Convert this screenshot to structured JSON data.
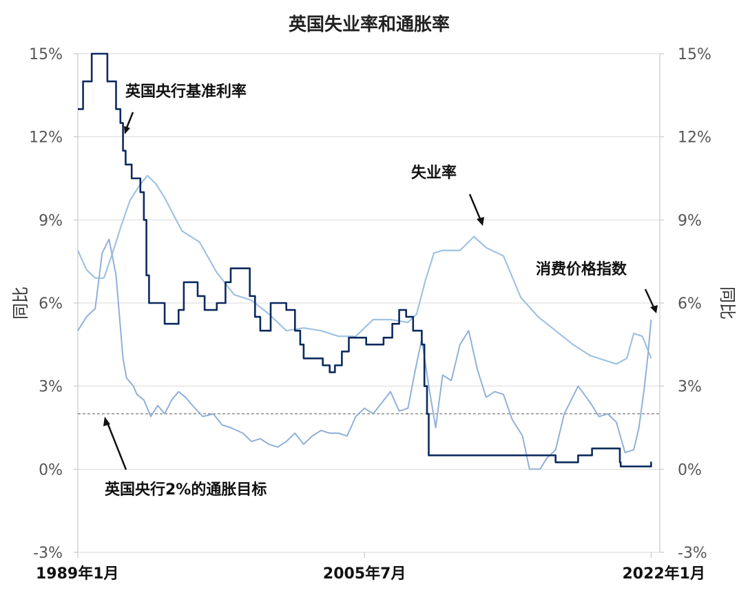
{
  "chart_data": {
    "type": "line",
    "title": "英国失业率和通胀率",
    "ylabel_left": "同比",
    "ylabel_right": "同比",
    "ylim": [
      -3,
      15
    ],
    "yticks": [
      "-3%",
      "0%",
      "3%",
      "6%",
      "9%",
      "12%",
      "15%"
    ],
    "ytick_values": [
      -3,
      0,
      3,
      6,
      9,
      12,
      15
    ],
    "xlim": [
      1989.0,
      2022.5
    ],
    "xtick_labels": [
      "1989年1月",
      "2005年7月",
      "2022年1月"
    ],
    "xtick_values": [
      1989.0,
      2005.5,
      2022.0
    ],
    "grid": true,
    "target_line": {
      "value": 2.0,
      "label": "英国央行2%的通胀目标",
      "color": "#555555"
    },
    "series": [
      {
        "name": "英国央行基准利率",
        "color": "#0b2a5e",
        "step": true,
        "x": [
          1989.0,
          1989.3,
          1989.8,
          1990.7,
          1991.2,
          1991.45,
          1991.6,
          1991.75,
          1992.1,
          1992.6,
          1992.8,
          1992.95,
          1993.1,
          1994.0,
          1994.8,
          1995.1,
          1995.9,
          1996.3,
          1997.0,
          1997.5,
          1997.8,
          1998.9,
          1999.2,
          1999.5,
          2000.1,
          2001.0,
          2001.5,
          2001.8,
          2002.0,
          2003.1,
          2003.5,
          2003.8,
          2004.2,
          2004.6,
          2005.1,
          2005.6,
          2006.6,
          2007.1,
          2007.5,
          2007.9,
          2008.3,
          2008.8,
          2008.95,
          2009.1,
          2009.2,
          2016.5,
          2017.8,
          2018.6,
          2020.2,
          2020.25,
          2021.9,
          2022.0
        ],
        "y": [
          13,
          14,
          15,
          14,
          13,
          12.5,
          11.5,
          11,
          10.5,
          10,
          9,
          7,
          6,
          5.25,
          5.75,
          6.75,
          6.25,
          5.75,
          6,
          6.75,
          7.25,
          6.25,
          5.5,
          5.0,
          6.0,
          5.75,
          5.0,
          4.5,
          4.0,
          3.75,
          3.5,
          3.75,
          4.25,
          4.75,
          4.75,
          4.5,
          4.75,
          5.25,
          5.75,
          5.5,
          5.0,
          4.5,
          3.0,
          2.0,
          0.5,
          0.25,
          0.5,
          0.75,
          0.25,
          0.1,
          0.1,
          0.25
        ]
      },
      {
        "name": "失业率",
        "color": "#9fc2e2",
        "step": false,
        "x": [
          1989.0,
          1989.5,
          1990.0,
          1990.5,
          1991.0,
          1991.5,
          1992.0,
          1992.5,
          1993.0,
          1993.5,
          1994.0,
          1995.0,
          1996.0,
          1997.0,
          1998.0,
          1999.0,
          2000.0,
          2001.0,
          2002.0,
          2003.0,
          2004.0,
          2005.0,
          2006.0,
          2007.0,
          2008.0,
          2008.5,
          2009.0,
          2009.5,
          2010.0,
          2011.0,
          2011.8,
          2012.5,
          2013.5,
          2014.5,
          2015.5,
          2016.5,
          2017.5,
          2018.5,
          2019.5,
          2020.0,
          2020.6,
          2021.0,
          2021.5,
          2022.0
        ],
        "y": [
          7.9,
          7.2,
          6.9,
          6.9,
          7.8,
          8.8,
          9.7,
          10.2,
          10.6,
          10.3,
          9.8,
          8.6,
          8.2,
          7.1,
          6.3,
          6.1,
          5.6,
          5.0,
          5.1,
          5.0,
          4.8,
          4.8,
          5.4,
          5.4,
          5.3,
          5.6,
          6.8,
          7.8,
          7.9,
          7.9,
          8.4,
          8.0,
          7.7,
          6.2,
          5.5,
          5.0,
          4.5,
          4.1,
          3.9,
          3.8,
          4.0,
          4.9,
          4.8,
          4.0
        ]
      },
      {
        "name": "消费价格指数",
        "color": "#8fb0d8",
        "step": false,
        "x": [
          1989.0,
          1989.5,
          1990.0,
          1990.4,
          1990.8,
          1991.2,
          1991.6,
          1991.8,
          1992.2,
          1992.4,
          1992.6,
          1992.8,
          1993.2,
          1993.6,
          1994.0,
          1994.4,
          1994.8,
          1995.2,
          1995.6,
          1996.2,
          1996.8,
          1997.3,
          1997.8,
          1998.5,
          1999.0,
          1999.5,
          2000.0,
          2000.5,
          2001.0,
          2001.5,
          2002.0,
          2002.5,
          2003.0,
          2003.5,
          2004.0,
          2004.5,
          2005.0,
          2005.5,
          2006.0,
          2006.5,
          2007.0,
          2007.5,
          2008.0,
          2008.4,
          2008.8,
          2009.2,
          2009.6,
          2010.0,
          2010.5,
          2011.0,
          2011.5,
          2012.0,
          2012.5,
          2013.0,
          2013.5,
          2014.0,
          2014.6,
          2015.0,
          2015.6,
          2016.0,
          2016.5,
          2017.0,
          2017.8,
          2018.5,
          2019.0,
          2019.5,
          2020.0,
          2020.5,
          2021.0,
          2021.3,
          2021.6,
          2021.8,
          2022.0
        ],
        "y": [
          5.0,
          5.5,
          5.8,
          7.8,
          8.3,
          7.0,
          4.0,
          3.3,
          3.0,
          2.7,
          2.6,
          2.5,
          1.9,
          2.3,
          2.0,
          2.5,
          2.8,
          2.6,
          2.3,
          1.9,
          2.0,
          1.6,
          1.5,
          1.3,
          1.0,
          1.1,
          0.9,
          0.8,
          1.0,
          1.3,
          0.9,
          1.2,
          1.4,
          1.3,
          1.3,
          1.2,
          1.9,
          2.2,
          2.0,
          2.4,
          2.8,
          2.1,
          2.2,
          3.5,
          4.7,
          3.0,
          1.5,
          3.4,
          3.2,
          4.5,
          5.0,
          3.6,
          2.6,
          2.8,
          2.7,
          1.8,
          1.2,
          0.0,
          0.0,
          0.4,
          0.7,
          2.0,
          3.0,
          2.4,
          1.9,
          2.0,
          1.7,
          0.6,
          0.7,
          1.5,
          2.9,
          4.0,
          5.4
        ]
      }
    ],
    "annotations": [
      {
        "text": "英国央行基准利率",
        "color": "#111111"
      },
      {
        "text": "失业率",
        "color": "#111111"
      },
      {
        "text": "消费价格指数",
        "color": "#111111"
      },
      {
        "text": "英国央行2%的通胀目标",
        "color": "#111111"
      }
    ]
  }
}
